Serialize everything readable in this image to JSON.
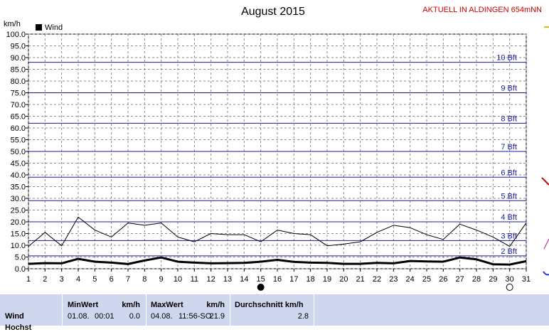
{
  "header": {
    "title": "August 2015",
    "station": "AKTUELL IN ALDINGEN 654mNN",
    "unit": "km/h"
  },
  "colors": {
    "background": "#ffffff",
    "grid_dashed": "#8a8a8a",
    "beaufort_line": "#1a1aa0",
    "station_text": "#d00000",
    "stats_bg": "#cfd7ef"
  },
  "chart_data": {
    "type": "line",
    "title": "August 2015",
    "ylabel": "km/h",
    "xlabel": "",
    "ylim": [
      0,
      100
    ],
    "y_ticks": [
      "0.0",
      "5.0",
      "10.0",
      "15.0",
      "20.0",
      "25.0",
      "30.0",
      "35.0",
      "40.0",
      "45.0",
      "50.0",
      "55.0",
      "60.0",
      "65.0",
      "70.0",
      "75.0",
      "80.0",
      "85.0",
      "90.0",
      "95.0",
      "100.0"
    ],
    "x": [
      "1",
      "2",
      "3",
      "4",
      "5",
      "6",
      "7",
      "8",
      "9",
      "10",
      "11",
      "12",
      "13",
      "14",
      "15",
      "16",
      "17",
      "18",
      "19",
      "20",
      "21",
      "22",
      "23",
      "24",
      "25",
      "26",
      "27",
      "28",
      "29",
      "30",
      "31"
    ],
    "grid": true,
    "legend": {
      "position": "top-left",
      "label": "Wind"
    },
    "series": [
      {
        "name": "Wind",
        "style": "thick",
        "values": [
          2.1,
          2.4,
          2.3,
          4.2,
          3.0,
          2.6,
          2.0,
          3.5,
          4.8,
          3.0,
          2.6,
          2.3,
          2.4,
          2.5,
          3.0,
          3.8,
          2.9,
          2.6,
          2.5,
          2.1,
          2.1,
          2.5,
          2.3,
          3.3,
          3.1,
          3.0,
          4.8,
          4.0,
          1.9,
          1.8,
          3.2
        ]
      },
      {
        "style": "thin",
        "values": [
          9.5,
          15.5,
          9.8,
          22.0,
          16.5,
          13.5,
          19.5,
          18.5,
          19.5,
          13.5,
          11.5,
          15.0,
          14.5,
          14.5,
          11.5,
          16.5,
          15.0,
          14.5,
          9.8,
          10.5,
          11.5,
          15.5,
          18.5,
          17.5,
          14.5,
          12.5,
          19.0,
          16.5,
          13.5,
          9.5,
          19.5
        ]
      }
    ],
    "beaufort_lines": [
      {
        "label": "2 Bft",
        "value": 5.5
      },
      {
        "label": "3 Bft",
        "value": 12
      },
      {
        "label": "4 Bft",
        "value": 20
      },
      {
        "label": "5 Bft",
        "value": 29
      },
      {
        "label": "6 Bft",
        "value": 39
      },
      {
        "label": "7 Bft",
        "value": 50
      },
      {
        "label": "8 Bft",
        "value": 62
      },
      {
        "label": "9 Bft",
        "value": 75
      },
      {
        "label": "10 Bft",
        "value": 88
      }
    ],
    "moon_markers": [
      {
        "day": 15,
        "phase": "new-moon-icon"
      },
      {
        "day": 30,
        "phase": "full-moon-icon"
      }
    ]
  },
  "stats": {
    "row_label": "Wind",
    "row_label_partial": "Hochst",
    "min": {
      "header": "MinWert",
      "unit": "km/h",
      "date": "01.08.",
      "time": "00:01",
      "value": "0.0"
    },
    "max": {
      "header": "MaxWert",
      "unit": "km/h",
      "date": "04.08.",
      "time": "11:56-SO",
      "value": "21.9"
    },
    "avg": {
      "header": "Durchschnitt km/h",
      "value": "2.8"
    }
  }
}
